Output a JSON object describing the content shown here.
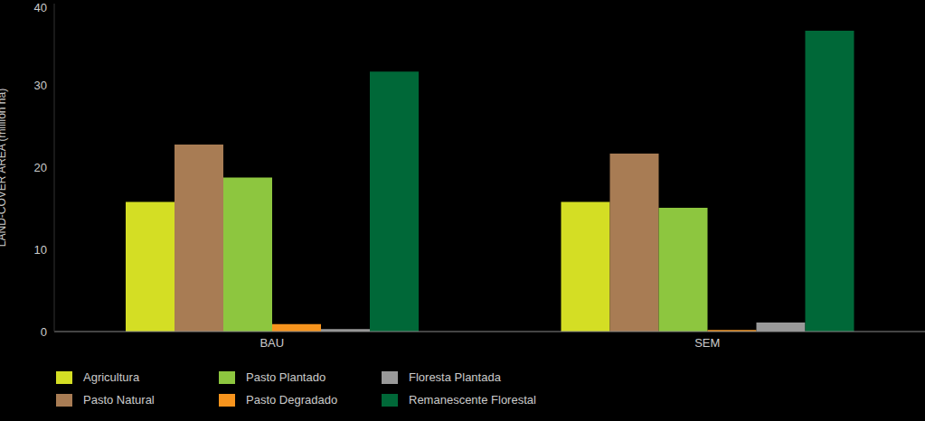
{
  "chart_data": {
    "type": "bar",
    "y_label": "LAND-COVER AREA (million ha)",
    "categories": [
      "BAU",
      "SEM"
    ],
    "series": [
      {
        "name": "Agricultura",
        "color": "#d4de24",
        "values": [
          15.8,
          15.8
        ]
      },
      {
        "name": "Pasto Natural",
        "color": "#a87c54",
        "values": [
          22.8,
          21.7
        ]
      },
      {
        "name": "Pasto Plantado",
        "color": "#8dc63f",
        "values": [
          18.8,
          15.1
        ]
      },
      {
        "name": "Pasto Degradado",
        "color": "#f7941d",
        "values": [
          0.9,
          0.2
        ]
      },
      {
        "name": "Floresta Plantada",
        "color": "#999999",
        "values": [
          0.3,
          1.1
        ]
      },
      {
        "name": "Remanescente Florestal",
        "color": "#006838",
        "values": [
          31.7,
          36.7
        ]
      }
    ],
    "ylim": [
      0,
      40
    ],
    "yticks": [
      0,
      10,
      20,
      30,
      40
    ],
    "grid": false
  }
}
